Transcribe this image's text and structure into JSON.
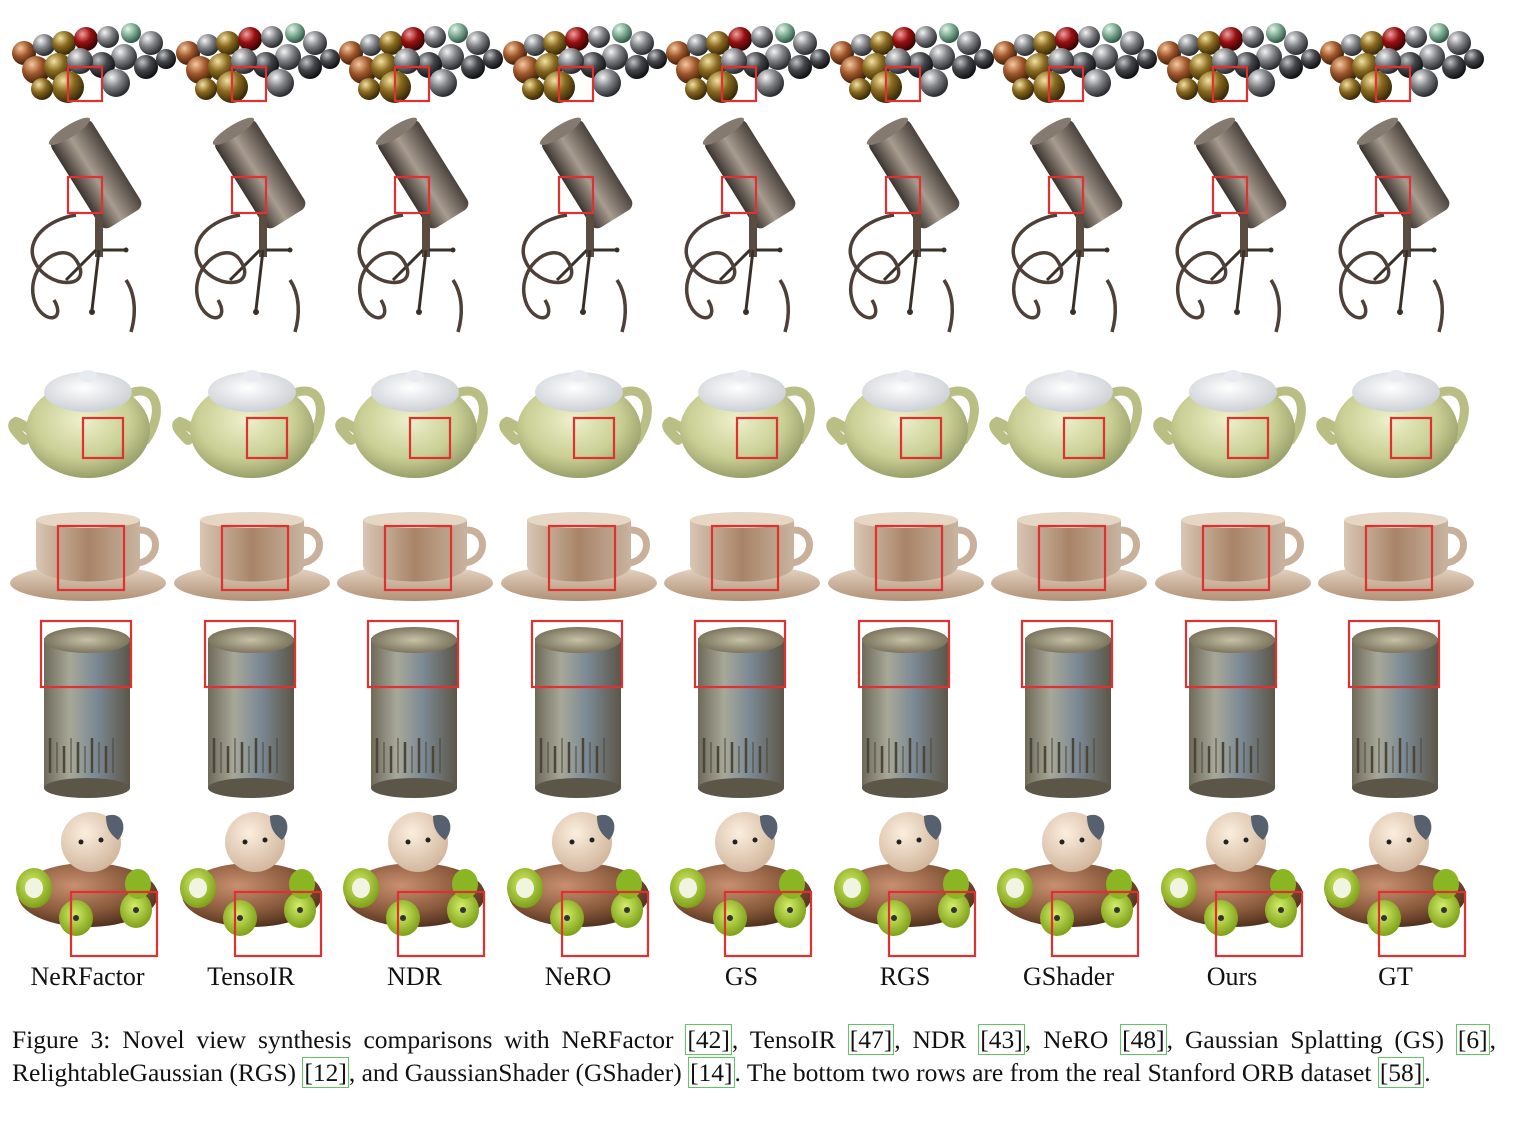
{
  "figure": {
    "methods": [
      "NeRFactor",
      "TensoIR",
      "NDR",
      "NeRO",
      "GS",
      "RGS",
      "GShader",
      "Ours",
      "GT"
    ],
    "rows": [
      "balls",
      "mic",
      "teapot",
      "cup",
      "can",
      "toy"
    ]
  },
  "caption": {
    "prefix": "Figure 3: Novel view synthesis comparisons with NeRFactor ",
    "c1": "[42]",
    "t1": ", TensoIR ",
    "c2": "[47]",
    "t2": ", NDR ",
    "c3": "[43]",
    "t3": ", NeRO ",
    "c4": "[48]",
    "t4": ", Gaussian Splatting (GS) ",
    "c5": "[6]",
    "t5": ", RelightableGaussian (RGS) ",
    "c6": "[12]",
    "t6": ", and GaussianShader (GShader) ",
    "c7": "[14]",
    "t7": ". The bottom two rows are from the real Stanford ORB dataset ",
    "c8": "[58]",
    "t8": "."
  },
  "colors": {
    "highlight_box": "#e03030",
    "citation_box": "#5ec85e",
    "teapot": "#c9cf94",
    "cup": "#b8967a",
    "toy_body": "#8a5a3c",
    "toy_wheel": "#a6cf2e"
  }
}
